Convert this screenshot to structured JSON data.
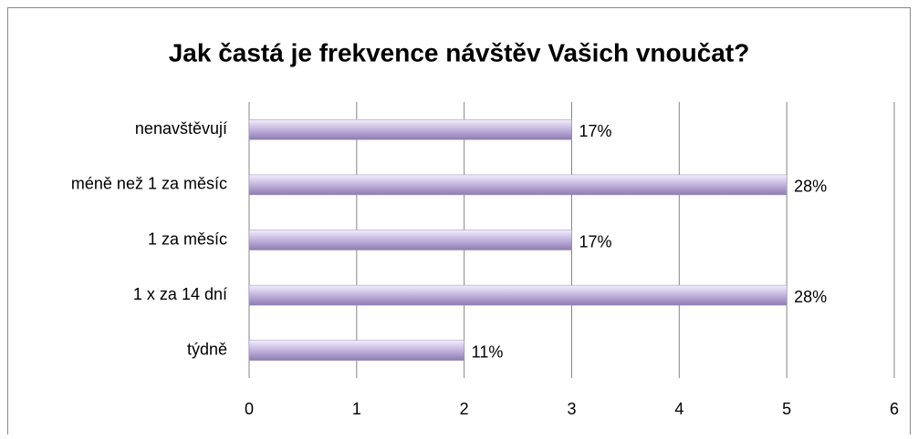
{
  "chart_data": {
    "type": "bar",
    "orientation": "horizontal",
    "title": "Jak častá je frekvence návštěv Vašich vnoučat?",
    "categories": [
      "nenavštěvují",
      "méně než 1 za měsíc",
      "1 za měsíc",
      "1 x za 14 dní",
      "týdně"
    ],
    "values": [
      3,
      5,
      3,
      5,
      2
    ],
    "value_labels": [
      "17%",
      "28%",
      "17%",
      "28%",
      "11%"
    ],
    "color": "#b3a2d2",
    "xlim": [
      0,
      6
    ],
    "xticks": [
      0,
      1,
      2,
      3,
      4,
      5,
      6
    ],
    "grid": true
  }
}
